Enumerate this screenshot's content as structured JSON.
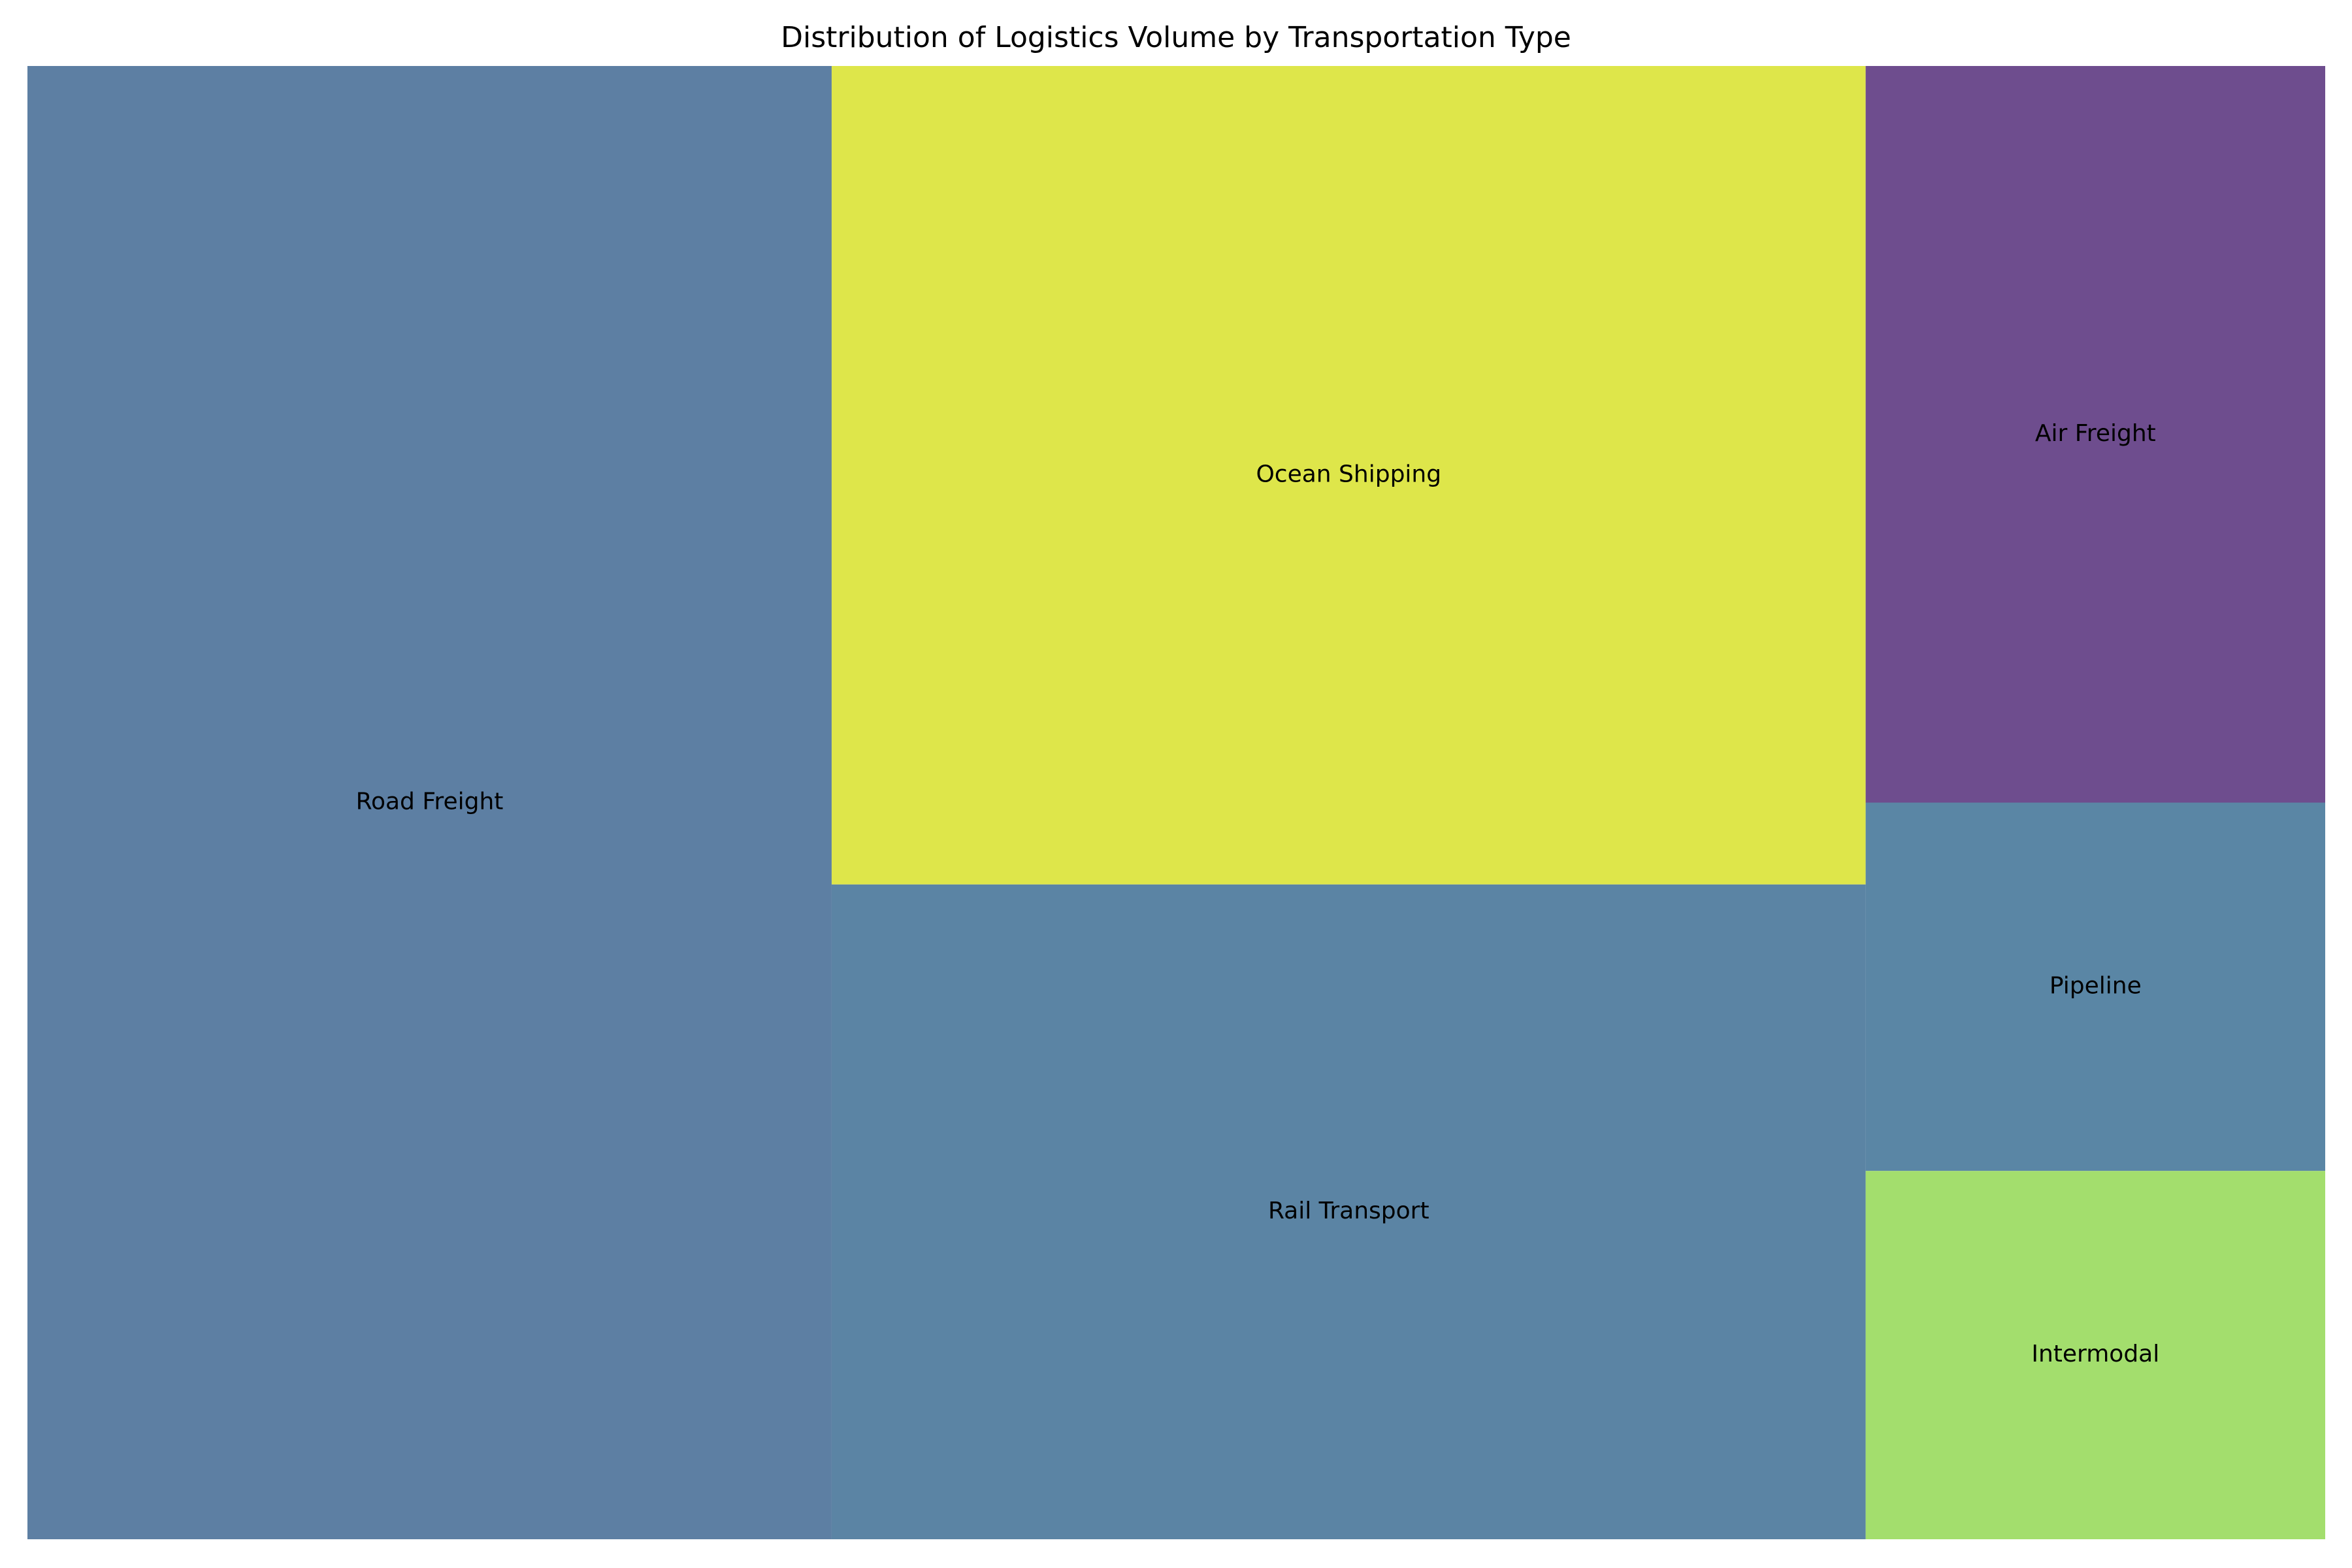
{
  "chart_data": {
    "type": "treemap",
    "title": "Distribution of Logistics Volume by Transportation Type",
    "unit": "share of total area (%)",
    "items": [
      {
        "label": "Road Freight",
        "value": 35,
        "color": "#5d7fa3"
      },
      {
        "label": "Ocean Shipping",
        "value": 25,
        "color": "#dee64a"
      },
      {
        "label": "Rail Transport",
        "value": 20,
        "color": "#5b84a4"
      },
      {
        "label": "Air Freight",
        "value": 10,
        "color": "#6e4d8e"
      },
      {
        "label": "Pipeline",
        "value": 5,
        "color": "#5a86a5"
      },
      {
        "label": "Intermodal",
        "value": 5,
        "color": "#a3de6d"
      }
    ]
  }
}
